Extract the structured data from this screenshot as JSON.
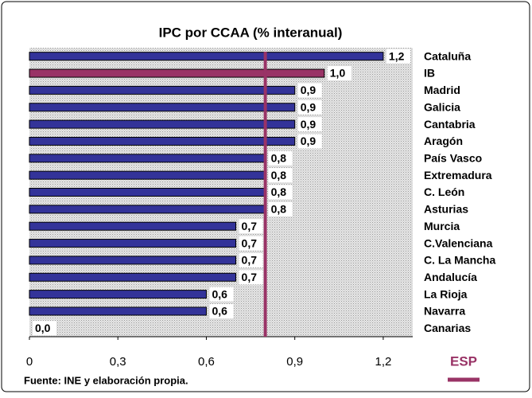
{
  "chart_data": {
    "type": "barh",
    "title": "IPC por CCAA (% interanual)",
    "categories": [
      "Cataluña",
      "IB",
      "Madrid",
      "Galicia",
      "Cantabria",
      "Aragón",
      "País Vasco",
      "Extremadura",
      "C. León",
      "Asturias",
      "Murcia",
      "C.Valenciana",
      "C. La Mancha",
      "Andalucía",
      "La Rioja",
      "Navarra",
      "Canarias"
    ],
    "values": [
      1.2,
      1.0,
      0.9,
      0.9,
      0.9,
      0.9,
      0.8,
      0.8,
      0.8,
      0.8,
      0.7,
      0.7,
      0.7,
      0.7,
      0.6,
      0.6,
      0.0
    ],
    "value_labels": [
      "1,2",
      "1,0",
      "0,9",
      "0,9",
      "0,9",
      "0,9",
      "0,8",
      "0,8",
      "0,8",
      "0,8",
      "0,7",
      "0,7",
      "0,7",
      "0,7",
      "0,6",
      "0,6",
      "0,0"
    ],
    "colors": [
      "#333399",
      "#993366",
      "#333399",
      "#333399",
      "#333399",
      "#333399",
      "#333399",
      "#333399",
      "#333399",
      "#333399",
      "#333399",
      "#333399",
      "#333399",
      "#333399",
      "#333399",
      "#333399",
      "#333399"
    ],
    "xlim": [
      0,
      1.3
    ],
    "xticks": [
      0,
      {
        "value": 0.3,
        "label": "0,3"
      },
      {
        "value": 0.6,
        "label": "0,6"
      },
      {
        "value": 0.9,
        "label": "0,9"
      },
      {
        "value": 1.2,
        "label": "1,2"
      }
    ],
    "reference": {
      "label": "ESP",
      "value": 0.8,
      "color": "#993366"
    },
    "source": "Fuente: INE y elaboración propia."
  }
}
